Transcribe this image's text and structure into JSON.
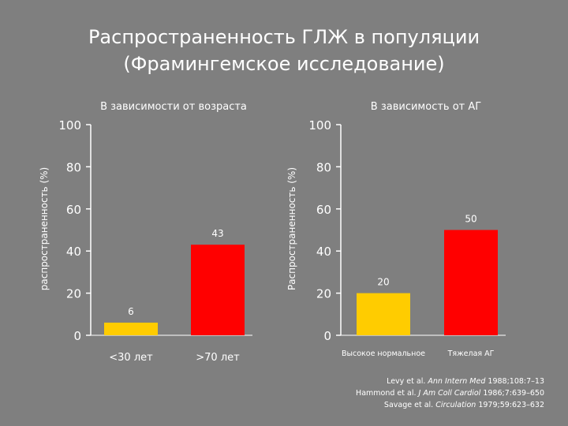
{
  "title_line1": "Распространенность ГЛЖ в популяции",
  "title_line2": "(Фрамингемское исследование)",
  "colors": {
    "background": "#7f7f7f",
    "yellow": "#ffcc00",
    "red": "#ff0000",
    "text": "#ffffff"
  },
  "chart_data": [
    {
      "type": "bar",
      "subtitle": "В зависимости от возраста",
      "ylabel": "распространенность (%)",
      "ylim": [
        0,
        100
      ],
      "yticks": [
        0,
        20,
        40,
        60,
        80,
        100
      ],
      "categories": [
        "<30 лет",
        ">70 лет"
      ],
      "values": [
        6,
        43
      ],
      "data_labels": [
        "6",
        "43"
      ],
      "bar_colors": [
        "#ffcc00",
        "#ff0000"
      ]
    },
    {
      "type": "bar",
      "subtitle": "В зависимость от АГ",
      "ylabel": "Распространенность (%)",
      "ylim": [
        0,
        100
      ],
      "yticks": [
        0,
        20,
        40,
        60,
        80,
        100
      ],
      "categories": [
        "Высокое нормальное",
        "Тяжелая АГ"
      ],
      "values": [
        20,
        50
      ],
      "data_labels": [
        "20",
        "50"
      ],
      "bar_colors": [
        "#ffcc00",
        "#ff0000"
      ]
    }
  ],
  "references": [
    {
      "plain": "Levy et al. ",
      "journal": "Ann Intern Med",
      "cite": " 1988;108:7–13"
    },
    {
      "plain": "Hammond et al. ",
      "journal": "J Am Coll Cardiol",
      "cite": " 1986;7:639–650"
    },
    {
      "plain": "Savage et al. ",
      "journal": "Circulation",
      "cite": " 1979;59:623–632"
    }
  ]
}
